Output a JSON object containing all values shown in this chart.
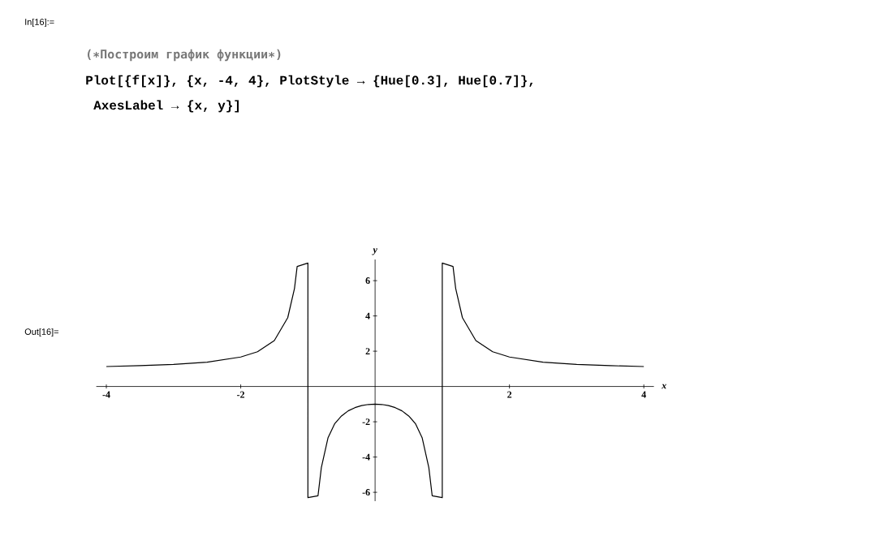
{
  "chart_data": {
    "type": "line",
    "xlabel": "x",
    "ylabel": "y",
    "annotations": [
      "In[16]:=",
      "(∗Построим график функции∗)",
      "Plot[{f[x]}, {x, -4, 4}, PlotStyle → {Hue[0.3], Hue[0.7]},",
      "AxesLabel → {x, y}]",
      "Out[16]="
    ],
    "x": [
      -4,
      -3.5,
      -3,
      -2.5,
      -2,
      -1.75,
      -1.5,
      -1.3,
      -1.2,
      -1.16,
      -1,
      -1,
      -0.85,
      -0.8,
      -0.7,
      -0.6,
      -0.5,
      -0.4,
      -0.3,
      -0.2,
      -0.1,
      0,
      0.1,
      0.2,
      0.3,
      0.4,
      0.5,
      0.6,
      0.7,
      0.8,
      0.85,
      1,
      1,
      1.16,
      1.2,
      1.3,
      1.5,
      1.75,
      2,
      2.5,
      3,
      3.5,
      4
    ],
    "series": [
      {
        "color": "#000000",
        "values": [
          1.13,
          1.18,
          1.25,
          1.38,
          1.67,
          1.97,
          2.6,
          3.9,
          5.55,
          6.8,
          7,
          -6.3,
          -6.2,
          -4.6,
          -2.9,
          -2.1,
          -1.67,
          -1.38,
          -1.2,
          -1.08,
          -1.02,
          -1,
          -1.02,
          -1.08,
          -1.2,
          -1.38,
          -1.67,
          -2.1,
          -2.9,
          -4.6,
          -6.2,
          -6.3,
          7,
          6.8,
          5.55,
          3.9,
          2.6,
          1.97,
          1.67,
          1.38,
          1.25,
          1.18,
          1.13
        ]
      }
    ],
    "xlim": [
      -4.15,
      4.15
    ],
    "ylim": [
      -6.5,
      7.2
    ],
    "xticks": [
      -4,
      -2,
      2,
      4
    ],
    "yticks": [
      -6,
      -4,
      -2,
      2,
      4,
      6
    ],
    "line_style": "solid"
  }
}
